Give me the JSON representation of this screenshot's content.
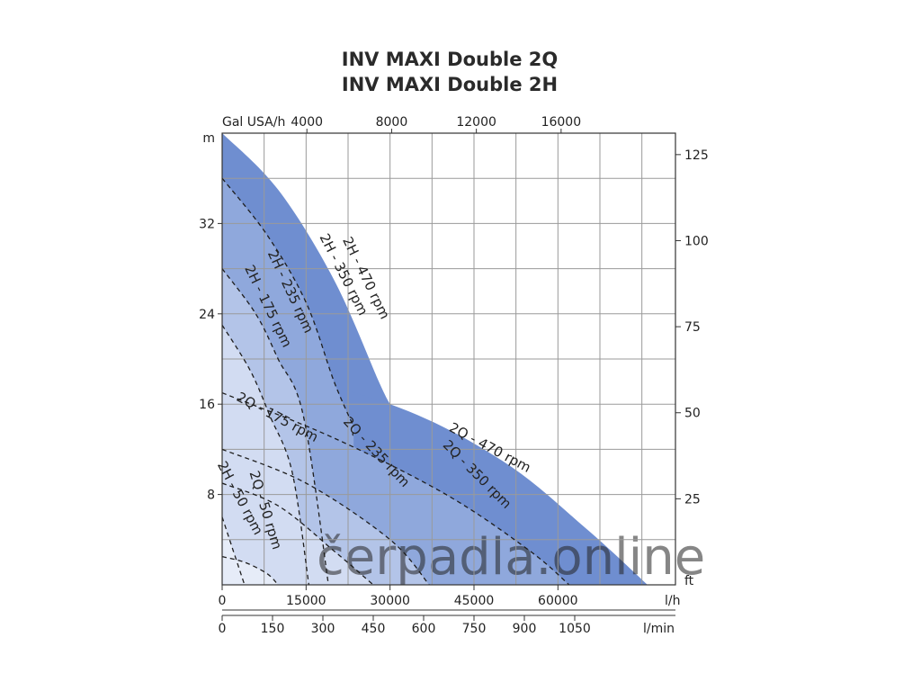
{
  "title_lines": [
    "INV MAXI Double 2Q",
    "INV MAXI Double 2H"
  ],
  "watermark": "čerpadla.online",
  "colors": {
    "band_470": "#6f8ed0",
    "band_350": "#8fa8dc",
    "band_235": "#b3c4e8",
    "band_175": "#d2dcf2",
    "band_50": "#e6ecf8",
    "grid": "#9a9a9a",
    "axis": "#333333"
  },
  "chart_data": {
    "type": "line",
    "title": "INV MAXI Double 2Q / INV MAXI Double 2H",
    "x_axes": [
      {
        "id": "lh",
        "unit": "l/h",
        "range": [
          0,
          81000
        ],
        "ticks": [
          0,
          15000,
          30000,
          45000,
          60000
        ],
        "tick_labels": [
          "0",
          "15000",
          "30000",
          "45000",
          "60000"
        ],
        "position": "bottom"
      },
      {
        "id": "lmin",
        "unit": "l/min",
        "range": [
          0,
          1350
        ],
        "ticks": [
          0,
          150,
          300,
          450,
          600,
          750,
          900,
          1050
        ],
        "tick_labels": [
          "0",
          "150",
          "300",
          "450",
          "600",
          "750",
          "900",
          "1050"
        ],
        "position": "bottom-secondary"
      },
      {
        "id": "gal",
        "unit": "Gal USA/h",
        "ticks": [
          4000,
          8000,
          12000,
          16000
        ],
        "tick_labels": [
          "4000",
          "8000",
          "12000",
          "16000"
        ],
        "position": "top"
      }
    ],
    "y_axes": [
      {
        "id": "m",
        "unit": "m",
        "range": [
          0,
          40
        ],
        "ticks": [
          8,
          16,
          24,
          32
        ],
        "tick_labels": [
          "8",
          "16",
          "24",
          "32"
        ],
        "position": "left"
      },
      {
        "id": "ft",
        "unit": "ft",
        "ticks": [
          25,
          50,
          75,
          100,
          125
        ],
        "tick_labels": [
          "25",
          "50",
          "75",
          "100",
          "125"
        ],
        "position": "right"
      }
    ],
    "grid": true,
    "series": [
      {
        "name": "2H - 470 rpm",
        "model": "2H",
        "rpm": 470,
        "x_lh": [
          0,
          10000,
          20000,
          28000,
          30000
        ],
        "y_m": [
          40,
          35,
          27,
          18,
          16
        ]
      },
      {
        "name": "2H - 350 rpm",
        "model": "2H",
        "rpm": 350,
        "x_lh": [
          0,
          8000,
          15000,
          20000,
          23500
        ],
        "y_m": [
          36,
          31,
          25,
          18,
          14
        ]
      },
      {
        "name": "2H - 235 rpm",
        "model": "2H",
        "rpm": 235,
        "x_lh": [
          0,
          6000,
          10000,
          14500,
          19000
        ],
        "y_m": [
          28,
          24,
          20,
          15,
          0
        ]
      },
      {
        "name": "2H - 175 rpm",
        "model": "2H",
        "rpm": 175,
        "x_lh": [
          0,
          5000,
          8500,
          12500,
          15500
        ],
        "y_m": [
          23,
          19,
          15,
          10,
          0
        ]
      },
      {
        "name": "2H - 50 rpm",
        "model": "2H",
        "rpm": 50,
        "x_lh": [
          0,
          2000,
          4000
        ],
        "y_m": [
          6,
          3,
          0
        ]
      },
      {
        "name": "2Q - 470 rpm",
        "model": "2Q",
        "rpm": 470,
        "x_lh": [
          0,
          30000,
          50000,
          65000,
          76000
        ],
        "y_m": [
          20,
          16,
          11,
          5,
          0
        ]
      },
      {
        "name": "2Q - 350 rpm",
        "model": "2Q",
        "rpm": 350,
        "x_lh": [
          0,
          20000,
          40000,
          55000,
          62000
        ],
        "y_m": [
          17,
          13,
          8,
          3,
          0
        ]
      },
      {
        "name": "2Q - 235 rpm",
        "model": "2Q",
        "rpm": 235,
        "x_lh": [
          0,
          15000,
          30000,
          37000
        ],
        "y_m": [
          12,
          9,
          4,
          0
        ]
      },
      {
        "name": "2Q - 175 rpm",
        "model": "2Q",
        "rpm": 175,
        "x_lh": [
          0,
          10000,
          20000,
          27000
        ],
        "y_m": [
          9,
          7,
          3,
          0
        ]
      },
      {
        "name": "2Q - 50 rpm",
        "model": "2Q",
        "rpm": 50,
        "x_lh": [
          0,
          4000,
          8000,
          10000
        ],
        "y_m": [
          2.5,
          2,
          1,
          0
        ]
      }
    ],
    "curve_labels": [
      {
        "text": "2H - 470 rpm",
        "x_lh": 25000,
        "y_m": 27,
        "angle": 64
      },
      {
        "text": "2H - 350 rpm",
        "x_lh": 21000,
        "y_m": 27.3,
        "angle": 63
      },
      {
        "text": "2H - 235 rpm",
        "x_lh": 11500,
        "y_m": 25.8,
        "angle": 65
      },
      {
        "text": "2H - 175 rpm",
        "x_lh": 7500,
        "y_m": 24.5,
        "angle": 64
      },
      {
        "text": "2Q - 175 rpm",
        "x_lh": 9500,
        "y_m": 14.5,
        "angle": 28
      },
      {
        "text": "2Q - 235 rpm",
        "x_lh": 27000,
        "y_m": 11.5,
        "angle": 47
      },
      {
        "text": "2Q - 350 rpm",
        "x_lh": 45000,
        "y_m": 9.5,
        "angle": 45
      },
      {
        "text": "2Q - 470 rpm",
        "x_lh": 47500,
        "y_m": 11.8,
        "angle": 28
      },
      {
        "text": "2H - 50 rpm",
        "x_lh": 2500,
        "y_m": 7.5,
        "angle": 62
      },
      {
        "text": "2Q - 50 rpm",
        "x_lh": 7000,
        "y_m": 6.5,
        "angle": 73
      }
    ]
  }
}
